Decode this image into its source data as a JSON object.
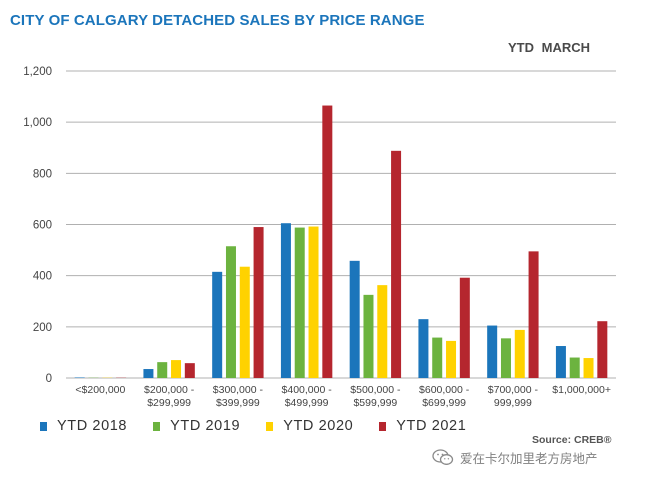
{
  "chart_data": {
    "type": "bar",
    "title": "CITY OF CALGARY DETACHED SALES BY PRICE RANGE",
    "subtitle": "YTD  MARCH",
    "categories": [
      [
        "<$200,000"
      ],
      [
        "$200,000 -",
        "$299,999"
      ],
      [
        "$300,000 -",
        "$399,999"
      ],
      [
        "$400,000 -",
        "$499,999"
      ],
      [
        "$500,000 -",
        "$599,999"
      ],
      [
        "$600,000 -",
        "$699,999"
      ],
      [
        "$700,000 -",
        "999,999"
      ],
      [
        "$1,000,000+"
      ]
    ],
    "series": [
      {
        "name": "YTD  2018",
        "color": "#1b75bb",
        "values": [
          2,
          35,
          415,
          605,
          458,
          230,
          205,
          125
        ]
      },
      {
        "name": "YTD  2019",
        "color": "#6cb33f",
        "values": [
          1,
          62,
          515,
          588,
          325,
          158,
          155,
          80
        ]
      },
      {
        "name": "YTD  2020",
        "color": "#ffd200",
        "values": [
          1,
          70,
          435,
          592,
          363,
          145,
          188,
          78
        ]
      },
      {
        "name": "YTD  2021",
        "color": "#b5262e",
        "values": [
          1,
          58,
          590,
          1065,
          888,
          392,
          495,
          222
        ]
      }
    ],
    "ylim": [
      0,
      1200
    ],
    "yticks": [
      0,
      200,
      400,
      600,
      800,
      1000,
      1200
    ],
    "ytick_labels": [
      "0",
      "200",
      "400",
      "600",
      "800",
      "1,000",
      "1,200"
    ],
    "xlabel": "",
    "ylabel": "",
    "grid": true,
    "legend_position": "bottom-left"
  },
  "source_label": "Source: CREB®",
  "watermark": {
    "icon": "wechat-icon",
    "text": "爱在卡尔加里老方房地产"
  }
}
